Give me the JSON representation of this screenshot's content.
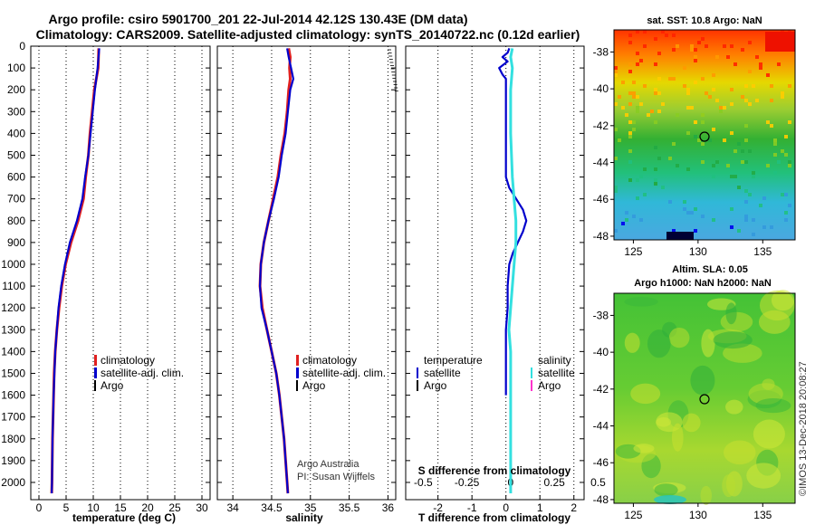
{
  "titles": {
    "line1": "Argo profile: csiro 5901700_201 22-Jul-2014 42.12S 130.43E (DM data)",
    "line2": "Climatology: CARS2009. Satellite-adjusted climatology: synTS_20140722.nc (0.12d earlier)"
  },
  "credits": {
    "line1": "Argo Australia",
    "line2": "PI: Susan Wijffels",
    "watermark": "©IMOS 13-Dec-2018 20:08:27"
  },
  "colors": {
    "climatology": "#e02020",
    "satellite": "#0000cc",
    "argo": "#000000",
    "salinity_satellite": "#33e0e0",
    "salinity_argo": "#ff33cc"
  },
  "depth_axis": {
    "ylim": [
      0,
      2050
    ],
    "ticks": [
      0,
      100,
      200,
      300,
      400,
      500,
      600,
      700,
      800,
      900,
      1000,
      1100,
      1200,
      1300,
      1400,
      1500,
      1600,
      1700,
      1800,
      1900,
      2000
    ]
  },
  "chart_data": [
    {
      "type": "line",
      "xlabel": "temperature (deg C)",
      "xlim": [
        -1.5,
        31.5
      ],
      "xticks": [
        0,
        5,
        10,
        15,
        20,
        25,
        30
      ],
      "legend": [
        "climatology",
        "satellite-adj. clim.",
        "Argo"
      ],
      "series": [
        {
          "name": "climatology",
          "depth": [
            10,
            100,
            200,
            300,
            400,
            500,
            600,
            700,
            800,
            900,
            1000,
            1100,
            1200,
            1300,
            1400,
            1500,
            1600,
            1700,
            1800,
            1900,
            2000,
            2050
          ],
          "values": [
            11.0,
            10.9,
            10.2,
            9.8,
            9.4,
            9.1,
            8.6,
            8.2,
            7.2,
            5.9,
            4.9,
            4.2,
            3.7,
            3.3,
            3.0,
            2.8,
            2.7,
            2.6,
            2.5,
            2.45,
            2.4,
            2.35
          ]
        },
        {
          "name": "satellite-adj. clim.",
          "depth": [
            10,
            100,
            200,
            300,
            400,
            500,
            600,
            700,
            800,
            900,
            1000,
            1100,
            1200,
            1300,
            1400,
            1500,
            1600,
            1700,
            1800,
            1900,
            2000,
            2050
          ],
          "values": [
            11.1,
            10.8,
            10.3,
            9.9,
            9.5,
            9.1,
            8.5,
            8.0,
            7.0,
            5.7,
            4.8,
            4.1,
            3.6,
            3.3,
            3.0,
            2.85,
            2.7,
            2.6,
            2.5,
            2.45,
            2.4,
            2.35
          ]
        }
      ]
    },
    {
      "type": "line",
      "xlabel": "salinity",
      "xlim": [
        33.8,
        36.1
      ],
      "xticks": [
        34,
        34.5,
        35,
        35.5,
        36
      ],
      "xticklabels": [
        "34",
        "34.5",
        "35",
        "35.5",
        "36"
      ],
      "legend": [
        "climatology",
        "satellite-adj. clim.",
        "Argo"
      ],
      "series": [
        {
          "name": "climatology",
          "depth": [
            10,
            50,
            100,
            150,
            200,
            300,
            400,
            500,
            600,
            700,
            800,
            900,
            1000,
            1100,
            1200,
            1300,
            1400,
            1500,
            1600,
            1700,
            1800,
            1900,
            2000,
            2050
          ],
          "values": [
            34.72,
            34.74,
            34.73,
            34.74,
            34.72,
            34.7,
            34.67,
            34.62,
            34.58,
            34.52,
            34.46,
            34.4,
            34.36,
            34.35,
            34.38,
            34.44,
            34.5,
            34.56,
            34.6,
            34.63,
            34.66,
            34.68,
            34.7,
            34.71
          ]
        },
        {
          "name": "satellite-adj. clim.",
          "depth": [
            10,
            50,
            100,
            150,
            200,
            300,
            400,
            500,
            600,
            700,
            800,
            900,
            1000,
            1100,
            1200,
            1300,
            1400,
            1500,
            1600,
            1700,
            1800,
            1900,
            2000,
            2050
          ],
          "values": [
            34.7,
            34.72,
            34.75,
            34.78,
            34.74,
            34.71,
            34.68,
            34.63,
            34.59,
            34.53,
            34.46,
            34.4,
            34.36,
            34.35,
            34.37,
            34.44,
            34.5,
            34.56,
            34.6,
            34.63,
            34.66,
            34.68,
            34.7,
            34.71
          ]
        }
      ]
    },
    {
      "type": "line",
      "xlabel": "T difference from climatology",
      "x2label": "S difference from climatology",
      "xlim": [
        -2.95,
        2.3
      ],
      "xticks": [
        -2,
        -1,
        0,
        1,
        2
      ],
      "x2lim": [
        -0.6,
        0.42
      ],
      "x2ticks": [
        -0.5,
        -0.25,
        0,
        0.25,
        0.5
      ],
      "x2ticklabels": [
        "-0.5",
        "-0.25",
        "0",
        "0.25",
        "0.5"
      ],
      "legend_t_title": "temperature",
      "legend_t": [
        "satellite",
        "Argo"
      ],
      "legend_s_title": "salinity",
      "legend_s": [
        "satellite",
        "Argo"
      ],
      "series": [
        {
          "name": "satellite",
          "axis": "T",
          "depth": [
            10,
            30,
            50,
            70,
            100,
            130,
            150,
            200,
            300,
            400,
            500,
            600,
            650,
            700,
            750,
            800,
            850,
            900,
            950,
            1000,
            1100,
            1200,
            1300,
            1400,
            1500,
            1600
          ],
          "values": [
            0.1,
            0.05,
            -0.1,
            0.05,
            -0.2,
            -0.1,
            0.0,
            0.0,
            0.0,
            0.0,
            0.0,
            0.0,
            0.1,
            0.3,
            0.5,
            0.6,
            0.5,
            0.35,
            0.2,
            0.1,
            0.05,
            0.05,
            0.0,
            0.0,
            0.0,
            0.0
          ]
        },
        {
          "name": "satellite",
          "axis": "S",
          "depth": [
            10,
            50,
            100,
            200,
            400,
            600,
            700,
            800,
            900,
            1000,
            1100,
            1200,
            1300,
            1400,
            1500,
            1600,
            1800,
            2000,
            2050
          ],
          "values": [
            0.01,
            0.0,
            0.01,
            0.0,
            0.0,
            0.01,
            0.02,
            0.03,
            0.03,
            0.02,
            0.01,
            0.0,
            -0.01,
            0.0,
            0.0,
            0.0,
            0.0,
            0.0,
            0.0
          ]
        }
      ]
    }
  ],
  "maps": {
    "sst": {
      "title": "sat. SST: 10.8  Argo: NaN",
      "lat_ticks": [
        -38,
        -40,
        -42,
        -44,
        -46,
        -48
      ],
      "lon_ticks": [
        125,
        130,
        135
      ],
      "lat_range": [
        -36.8,
        -48.2
      ],
      "lon_range": [
        123.5,
        137.5
      ],
      "float_lat": -42.12,
      "float_lon": 130.43
    },
    "sla": {
      "title1": "Altim. SLA: 0.05",
      "title2": "Argo h1000: NaN h2000: NaN",
      "lat_ticks": [
        -38,
        -40,
        -42,
        -44,
        -46,
        -48
      ],
      "lon_ticks": [
        125,
        130,
        135
      ],
      "lat_range": [
        -36.8,
        -48.2
      ],
      "lon_range": [
        123.5,
        137.5
      ],
      "float_lat": -42.12,
      "float_lon": 130.43
    }
  }
}
